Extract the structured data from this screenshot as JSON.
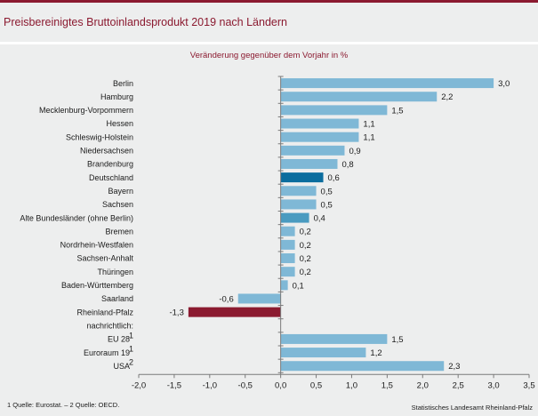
{
  "header": {
    "title": "Preisbereinigtes Bruttoinlandsprodukt  2019 nach Ländern"
  },
  "footer": {
    "note": "1 Quelle: Eurostat. – 2 Quelle: OECD.",
    "source": "Statistisches Landesamt Rheinland-Pfalz"
  },
  "colors": {
    "accent": "#8b1a30",
    "bar_default": "#7fb8d6",
    "bar_germany": "#0b6d9e",
    "bar_west": "#4a9bc0",
    "bar_highlight": "#8b1a30",
    "background": "#edeeee"
  },
  "chart_data": {
    "type": "bar",
    "orientation": "horizontal",
    "title": "Preisbereinigtes Bruttoinlandsprodukt  2019 nach Ländern",
    "subtitle": "Veränderung  gegenüber dem Vorjahr in %",
    "xlabel": "",
    "ylabel": "",
    "xlim": [
      -2.0,
      3.5
    ],
    "xticks": [
      -2.0,
      -1.5,
      -1.0,
      -0.5,
      0.0,
      0.5,
      1.0,
      1.5,
      2.0,
      2.5,
      3.0,
      3.5
    ],
    "xtick_labels": [
      "-2,0",
      "-1,5",
      "-1,0",
      "-0,5",
      "0,0",
      "0,5",
      "1,0",
      "1,5",
      "2,0",
      "2,5",
      "3,0",
      "3,5"
    ],
    "grid": false,
    "categories": [
      {
        "label": "Berlin",
        "sup": "",
        "value": 3.0,
        "value_label": "3,0",
        "style": "default"
      },
      {
        "label": "Hamburg",
        "sup": "",
        "value": 2.2,
        "value_label": "2,2",
        "style": "default"
      },
      {
        "label": "Mecklenburg-Vorpommern",
        "sup": "",
        "value": 1.5,
        "value_label": "1,5",
        "style": "default"
      },
      {
        "label": "Hessen",
        "sup": "",
        "value": 1.1,
        "value_label": "1,1",
        "style": "default"
      },
      {
        "label": "Schleswig-Holstein",
        "sup": "",
        "value": 1.1,
        "value_label": "1,1",
        "style": "default"
      },
      {
        "label": "Niedersachsen",
        "sup": "",
        "value": 0.9,
        "value_label": "0,9",
        "style": "default"
      },
      {
        "label": "Brandenburg",
        "sup": "",
        "value": 0.8,
        "value_label": "0,8",
        "style": "default"
      },
      {
        "label": "Deutschland",
        "sup": "",
        "value": 0.6,
        "value_label": "0,6",
        "style": "germany"
      },
      {
        "label": "Bayern",
        "sup": "",
        "value": 0.5,
        "value_label": "0,5",
        "style": "default"
      },
      {
        "label": "Sachsen",
        "sup": "",
        "value": 0.5,
        "value_label": "0,5",
        "style": "default"
      },
      {
        "label": "Alte Bundesländer (ohne Berlin)",
        "sup": "",
        "value": 0.4,
        "value_label": "0,4",
        "style": "west"
      },
      {
        "label": "Bremen",
        "sup": "",
        "value": 0.2,
        "value_label": "0,2",
        "style": "default"
      },
      {
        "label": "Nordrhein-Westfalen",
        "sup": "",
        "value": 0.2,
        "value_label": "0,2",
        "style": "default"
      },
      {
        "label": "Sachsen-Anhalt",
        "sup": "",
        "value": 0.2,
        "value_label": "0,2",
        "style": "default"
      },
      {
        "label": "Thüringen",
        "sup": "",
        "value": 0.2,
        "value_label": "0,2",
        "style": "default"
      },
      {
        "label": "Baden-Württemberg",
        "sup": "",
        "value": 0.1,
        "value_label": "0,1",
        "style": "default"
      },
      {
        "label": "Saarland",
        "sup": "",
        "value": -0.6,
        "value_label": "-0,6",
        "style": "default"
      },
      {
        "label": "Rheinland-Pfalz",
        "sup": "",
        "value": -1.3,
        "value_label": "-1,3",
        "style": "highlight"
      },
      {
        "label": "nachrichtlich:",
        "sup": "",
        "value": null,
        "value_label": "",
        "style": "none"
      },
      {
        "label": "EU 28",
        "sup": "1",
        "value": 1.5,
        "value_label": "1,5",
        "style": "default"
      },
      {
        "label": "Euroraum 19",
        "sup": "1",
        "value": 1.2,
        "value_label": "1,2",
        "style": "default"
      },
      {
        "label": "USA",
        "sup": "2",
        "value": 2.3,
        "value_label": "2,3",
        "style": "default"
      }
    ]
  }
}
